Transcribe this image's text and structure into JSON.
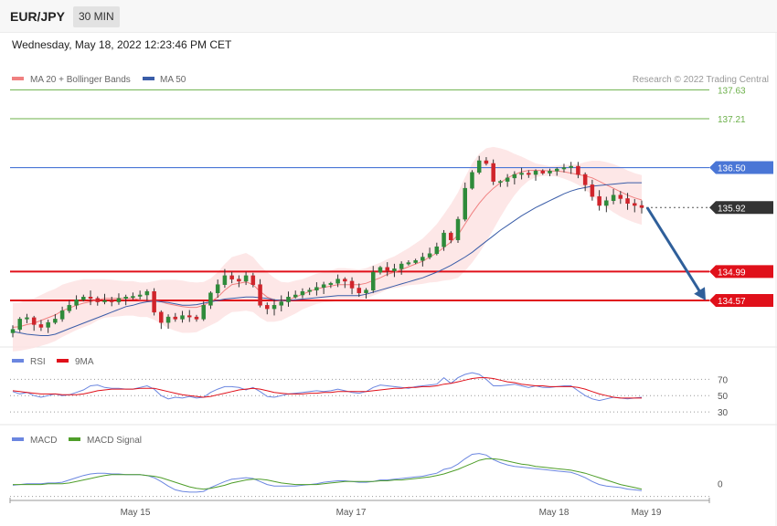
{
  "header": {
    "symbol": "EUR/JPY",
    "timeframe": "30 MIN"
  },
  "datetime": "Wednesday, May 18, 2022 12:23:46 PM CET",
  "colors": {
    "candle_up": "#2e8b3a",
    "candle_down": "#d0242b",
    "ma20": "#f08080",
    "bands_fill": "#fde3e3",
    "ma50": "#3a5da8",
    "target": "#6cb04a",
    "resistance": "#4a76d6",
    "support": "#e0101a",
    "current": "#333333",
    "arrow": "#2f5f9a",
    "rsi": "#6b86e0",
    "rsi_ma": "#e0101a",
    "macd": "#6b86e0",
    "macd_signal": "#4f9e2a"
  },
  "chart_data": [
    {
      "type": "candlestick",
      "title": "",
      "legend": [
        {
          "name": "MA 20 + Bollinger Bands",
          "color": "#f08080"
        },
        {
          "name": "MA 50",
          "color": "#3a5da8"
        }
      ],
      "credit": "Research © 2022 Trading Central",
      "x_labels": [
        "May 15",
        "May 17",
        "May 18",
        "May 19"
      ],
      "ylim": [
        134.0,
        137.9
      ],
      "levels": [
        {
          "value": 137.63,
          "label": "137.63",
          "kind": "target"
        },
        {
          "value": 137.21,
          "label": "137.21",
          "kind": "target"
        },
        {
          "value": 136.5,
          "label": "136.50",
          "kind": "resistance"
        },
        {
          "value": 135.92,
          "label": "135.92",
          "kind": "current"
        },
        {
          "value": 134.99,
          "label": "134.99",
          "kind": "support"
        },
        {
          "value": 134.57,
          "label": "134.57",
          "kind": "support"
        }
      ],
      "close_path": [
        134.15,
        134.3,
        134.32,
        134.22,
        134.18,
        134.25,
        134.3,
        134.42,
        134.5,
        134.58,
        134.62,
        134.6,
        134.55,
        134.57,
        134.55,
        134.6,
        134.62,
        134.63,
        134.65,
        134.7,
        134.4,
        134.25,
        134.33,
        134.3,
        134.35,
        134.33,
        134.3,
        134.5,
        134.68,
        134.8,
        134.93,
        134.88,
        134.85,
        134.93,
        134.8,
        134.5,
        134.45,
        134.5,
        134.55,
        134.62,
        134.65,
        134.7,
        134.72,
        134.76,
        134.8,
        134.82,
        134.88,
        134.85,
        134.75,
        134.68,
        134.72,
        134.98,
        135.05,
        135.0,
        135.03,
        135.1,
        135.12,
        135.15,
        135.2,
        135.25,
        135.35,
        135.55,
        135.45,
        135.75,
        136.2,
        136.43,
        136.6,
        136.56,
        136.3,
        136.3,
        136.35,
        136.4,
        136.42,
        136.4,
        136.45,
        136.42,
        136.45,
        136.48,
        136.5,
        136.52,
        136.4,
        136.25,
        136.08,
        135.95,
        136.02,
        136.1,
        136.05,
        135.98,
        135.95,
        135.92
      ],
      "ma20_path": [
        134.18,
        134.19,
        134.22,
        134.24,
        134.28,
        134.32,
        134.36,
        134.42,
        134.46,
        134.5,
        134.53,
        134.55,
        134.58,
        134.6,
        134.6,
        134.6,
        134.6,
        134.6,
        134.58,
        134.58,
        134.57,
        134.55,
        134.52,
        134.5,
        134.48,
        134.47,
        134.47,
        134.5,
        134.55,
        134.62,
        134.72,
        134.8,
        134.82,
        134.84,
        134.8,
        134.7,
        134.62,
        134.58,
        134.56,
        134.58,
        134.62,
        134.66,
        134.7,
        134.74,
        134.76,
        134.78,
        134.8,
        134.8,
        134.8,
        134.8,
        134.82,
        134.86,
        134.9,
        134.95,
        134.98,
        135.02,
        135.06,
        135.1,
        135.14,
        135.2,
        135.26,
        135.34,
        135.42,
        135.52,
        135.68,
        135.84,
        135.98,
        136.1,
        136.2,
        136.28,
        136.35,
        136.4,
        136.44,
        136.46,
        136.46,
        136.46,
        136.45,
        136.45,
        136.44,
        136.42,
        136.4,
        136.38,
        136.35,
        136.3,
        136.25,
        136.2,
        136.15,
        136.1,
        136.06,
        136.03
      ],
      "ma50_path": [
        134.12,
        134.1,
        134.08,
        134.07,
        134.06,
        134.06,
        134.08,
        134.12,
        134.16,
        134.2,
        134.24,
        134.28,
        134.32,
        134.36,
        134.4,
        134.44,
        134.48,
        134.5,
        134.53,
        134.55,
        134.56,
        134.55,
        134.54,
        134.52,
        134.5,
        134.5,
        134.51,
        134.53,
        134.55,
        134.57,
        134.59,
        134.6,
        134.61,
        134.62,
        134.62,
        134.61,
        134.6,
        134.58,
        134.57,
        134.57,
        134.58,
        134.59,
        134.6,
        134.61,
        134.62,
        134.63,
        134.64,
        134.64,
        134.64,
        134.64,
        134.66,
        134.69,
        134.72,
        134.75,
        134.78,
        134.81,
        134.84,
        134.87,
        134.9,
        134.94,
        134.98,
        135.03,
        135.08,
        135.14,
        135.2,
        135.27,
        135.35,
        135.43,
        135.51,
        135.59,
        135.66,
        135.73,
        135.8,
        135.86,
        135.92,
        135.97,
        136.02,
        136.07,
        136.12,
        136.16,
        136.19,
        136.21,
        136.23,
        136.24,
        136.25,
        136.26,
        136.27,
        136.28,
        136.28,
        136.28
      ],
      "band_width": [
        0.35,
        0.35,
        0.36,
        0.36,
        0.37,
        0.38,
        0.38,
        0.38,
        0.37,
        0.36,
        0.35,
        0.33,
        0.3,
        0.28,
        0.27,
        0.26,
        0.25,
        0.25,
        0.25,
        0.25,
        0.28,
        0.32,
        0.35,
        0.37,
        0.38,
        0.37,
        0.36,
        0.34,
        0.34,
        0.36,
        0.38,
        0.4,
        0.41,
        0.42,
        0.4,
        0.38,
        0.36,
        0.32,
        0.28,
        0.25,
        0.24,
        0.22,
        0.22,
        0.22,
        0.22,
        0.23,
        0.24,
        0.24,
        0.23,
        0.22,
        0.22,
        0.22,
        0.22,
        0.22,
        0.23,
        0.25,
        0.27,
        0.3,
        0.33,
        0.37,
        0.42,
        0.48,
        0.55,
        0.62,
        0.68,
        0.72,
        0.72,
        0.68,
        0.6,
        0.5,
        0.4,
        0.3,
        0.22,
        0.15,
        0.1,
        0.08,
        0.07,
        0.08,
        0.1,
        0.12,
        0.15,
        0.2,
        0.25,
        0.3,
        0.33,
        0.35,
        0.36,
        0.36,
        0.36,
        0.36
      ]
    },
    {
      "type": "line",
      "legend": [
        {
          "name": "RSI",
          "color": "#6b86e0"
        },
        {
          "name": "9MA",
          "color": "#e0101a"
        }
      ],
      "ylim": [
        20,
        85
      ],
      "y_ticks": [
        70,
        50,
        30
      ],
      "rsi": [
        55,
        52,
        54,
        50,
        48,
        50,
        52,
        50,
        51,
        54,
        57,
        62,
        63,
        60,
        59,
        59,
        58,
        58,
        60,
        62,
        58,
        50,
        46,
        48,
        47,
        49,
        47,
        48,
        54,
        58,
        61,
        61,
        60,
        57,
        60,
        55,
        49,
        48,
        50,
        52,
        53,
        54,
        55,
        56,
        55,
        56,
        58,
        56,
        54,
        53,
        55,
        60,
        63,
        62,
        61,
        60,
        59,
        61,
        62,
        63,
        64,
        72,
        65,
        72,
        76,
        78,
        76,
        70,
        62,
        62,
        63,
        64,
        62,
        60,
        62,
        60,
        60,
        61,
        62,
        62,
        56,
        50,
        46,
        44,
        46,
        48,
        47,
        46,
        47,
        48
      ],
      "rsi_ma": [
        56,
        55,
        54,
        53,
        52,
        52,
        52,
        51,
        51,
        51,
        52,
        54,
        56,
        57,
        58,
        58,
        58,
        58,
        59,
        59,
        59,
        57,
        55,
        53,
        51,
        50,
        49,
        48,
        49,
        51,
        53,
        55,
        57,
        58,
        59,
        58,
        56,
        54,
        53,
        52,
        52,
        52,
        53,
        53,
        54,
        54,
        55,
        55,
        55,
        55,
        55,
        56,
        57,
        58,
        59,
        59,
        60,
        60,
        61,
        61,
        62,
        64,
        65,
        67,
        69,
        71,
        72,
        72,
        71,
        69,
        67,
        66,
        64,
        63,
        62,
        62,
        61,
        61,
        61,
        61,
        60,
        58,
        55,
        52,
        50,
        48,
        47,
        47,
        47,
        47
      ]
    },
    {
      "type": "line",
      "legend": [
        {
          "name": "MACD",
          "color": "#6b86e0"
        },
        {
          "name": "MACD Signal",
          "color": "#4f9e2a"
        }
      ],
      "y_ticks": [
        0
      ],
      "ylim": [
        -0.15,
        0.55
      ],
      "macd": [
        0.05,
        0.06,
        0.07,
        0.07,
        0.07,
        0.08,
        0.08,
        0.09,
        0.12,
        0.15,
        0.18,
        0.2,
        0.21,
        0.21,
        0.2,
        0.2,
        0.19,
        0.19,
        0.19,
        0.18,
        0.15,
        0.1,
        0.04,
        -0.01,
        -0.03,
        -0.04,
        -0.04,
        -0.03,
        0.02,
        0.06,
        0.1,
        0.13,
        0.14,
        0.15,
        0.14,
        0.1,
        0.06,
        0.04,
        0.04,
        0.04,
        0.04,
        0.05,
        0.06,
        0.07,
        0.09,
        0.1,
        0.11,
        0.11,
        0.1,
        0.09,
        0.09,
        0.1,
        0.12,
        0.12,
        0.13,
        0.14,
        0.15,
        0.16,
        0.17,
        0.19,
        0.21,
        0.26,
        0.28,
        0.33,
        0.4,
        0.46,
        0.47,
        0.45,
        0.39,
        0.35,
        0.32,
        0.3,
        0.29,
        0.28,
        0.27,
        0.26,
        0.25,
        0.24,
        0.23,
        0.22,
        0.19,
        0.15,
        0.1,
        0.06,
        0.04,
        0.03,
        0.02,
        0.0,
        -0.01,
        -0.02
      ],
      "signal": [
        0.06,
        0.06,
        0.06,
        0.06,
        0.06,
        0.07,
        0.07,
        0.07,
        0.08,
        0.1,
        0.12,
        0.14,
        0.16,
        0.18,
        0.19,
        0.19,
        0.19,
        0.19,
        0.19,
        0.18,
        0.17,
        0.15,
        0.12,
        0.09,
        0.06,
        0.03,
        0.01,
        0.0,
        0.01,
        0.03,
        0.05,
        0.08,
        0.1,
        0.12,
        0.13,
        0.13,
        0.12,
        0.1,
        0.08,
        0.07,
        0.06,
        0.06,
        0.06,
        0.06,
        0.07,
        0.08,
        0.09,
        0.1,
        0.1,
        0.1,
        0.1,
        0.1,
        0.11,
        0.11,
        0.12,
        0.12,
        0.13,
        0.14,
        0.15,
        0.16,
        0.18,
        0.2,
        0.23,
        0.26,
        0.3,
        0.34,
        0.38,
        0.4,
        0.4,
        0.39,
        0.37,
        0.35,
        0.33,
        0.32,
        0.3,
        0.29,
        0.28,
        0.27,
        0.26,
        0.25,
        0.23,
        0.21,
        0.18,
        0.15,
        0.12,
        0.09,
        0.06,
        0.04,
        0.02,
        0.0
      ]
    }
  ]
}
